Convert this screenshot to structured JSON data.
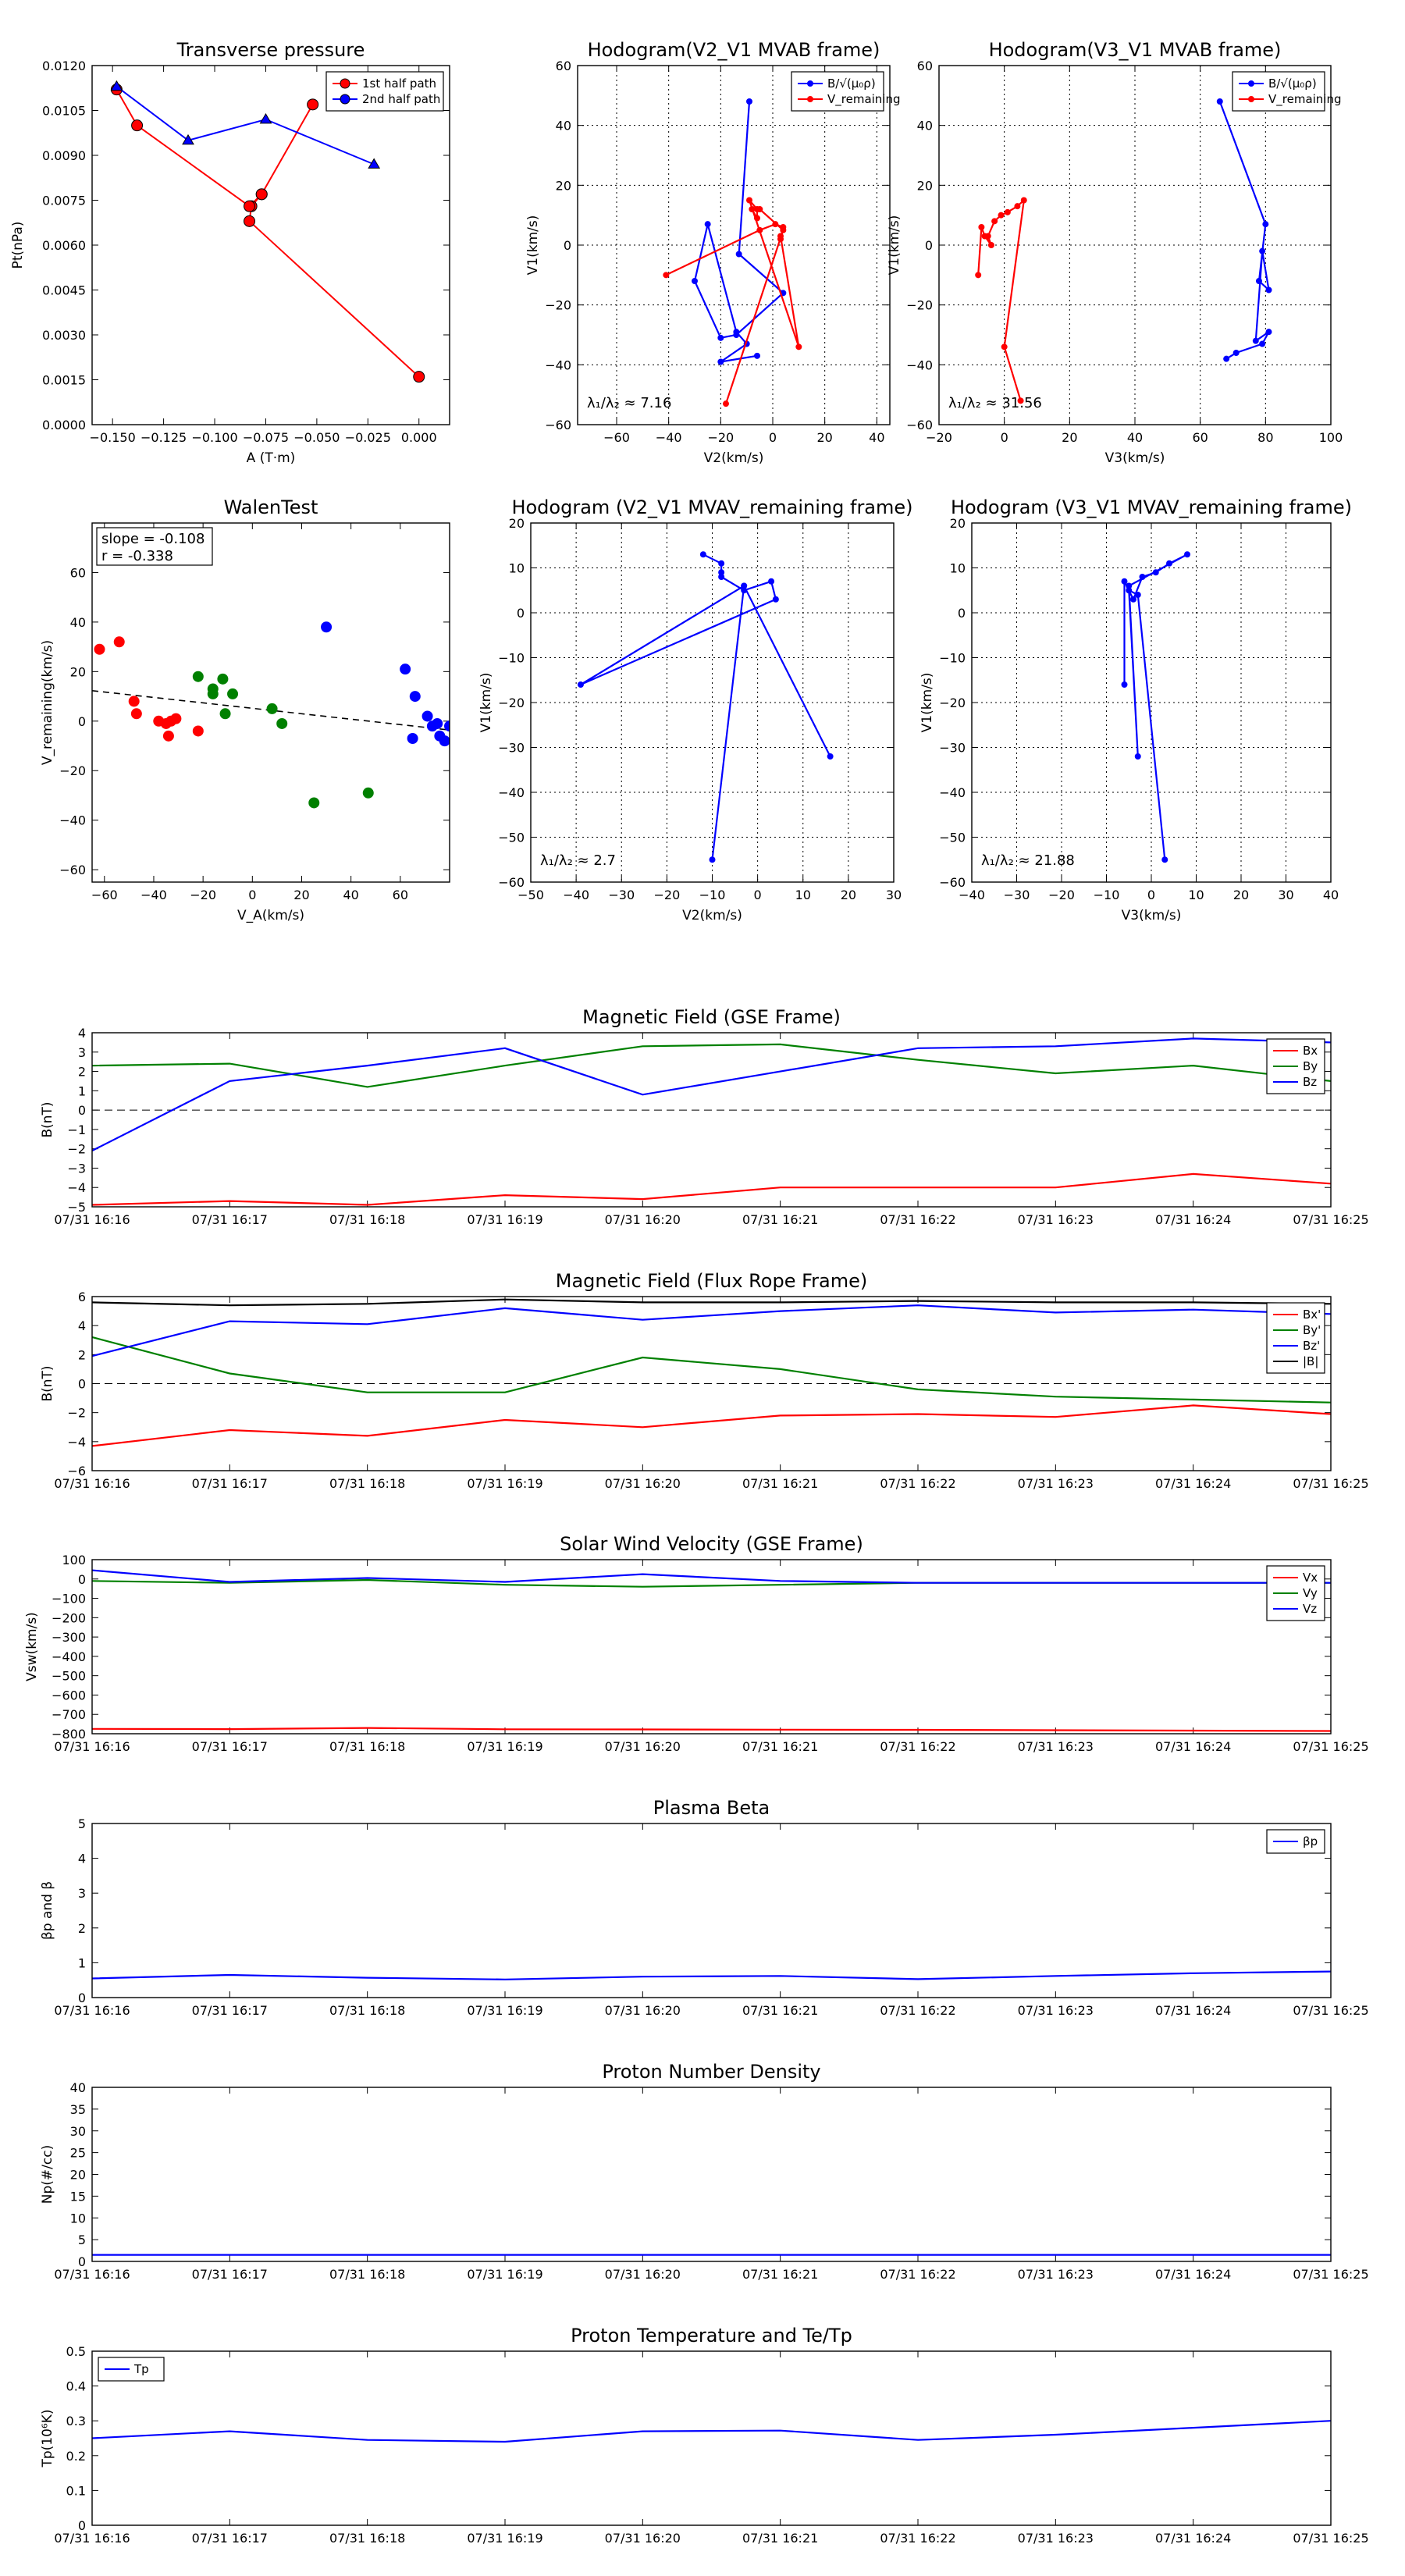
{
  "figure": {
    "background": "#ffffff",
    "colors": {
      "red": "#ff0000",
      "blue": "#0000ff",
      "green": "#008000",
      "black": "#000000",
      "sub_red": "#d62020",
      "sub_blue": "#1a1ad0"
    }
  },
  "chart_data": [
    {
      "id": "transverse-pressure",
      "type": "line",
      "title": "Transverse pressure",
      "xlabel": "A (T·m)",
      "ylabel": "Pt(nPa)",
      "xlim": [
        -0.16,
        0.015
      ],
      "ylim": [
        0,
        0.012
      ],
      "xticks": [
        -0.15,
        -0.125,
        -0.1,
        -0.075,
        -0.05,
        -0.025,
        0.0
      ],
      "xtick_labels": [
        "−0.150",
        "−0.125",
        "−0.100",
        "−0.075",
        "−0.050",
        "−0.025",
        "0.000"
      ],
      "yticks": [
        0,
        0.0015,
        0.003,
        0.0045,
        0.006,
        0.0075,
        0.009,
        0.0105,
        0.012
      ],
      "ytick_labels": [
        "0.0000",
        "0.0015",
        "0.0030",
        "0.0045",
        "0.0060",
        "0.0075",
        "0.0090",
        "0.0105",
        "0.0120"
      ],
      "grid": false,
      "legend": "top-right",
      "series": [
        {
          "name": "1st half path",
          "color": "#ff0000",
          "marker": "circle",
          "x": [
            0.0,
            -0.083,
            -0.082,
            -0.077,
            -0.052,
            -0.077,
            -0.083,
            -0.138,
            -0.148
          ],
          "y": [
            0.0016,
            0.0068,
            0.0073,
            0.0077,
            0.0107,
            0.0077,
            0.0073,
            0.01,
            0.0112
          ]
        },
        {
          "name": "2nd half path",
          "color": "#0000ff",
          "marker": "triangle",
          "x": [
            -0.148,
            -0.113,
            -0.075,
            -0.022
          ],
          "y": [
            0.0113,
            0.0095,
            0.0102,
            0.0087
          ]
        }
      ]
    },
    {
      "id": "hodogram-v2v1-mvab",
      "type": "line",
      "title": "Hodogram(V2_V1 MVAB frame)",
      "xlabel": "V2(km/s)",
      "ylabel": "V1(km/s)",
      "xlim": [
        -75,
        45
      ],
      "ylim": [
        -60,
        60
      ],
      "xticks": [
        -60,
        -40,
        -20,
        0,
        20,
        40
      ],
      "yticks": [
        -60,
        -40,
        -20,
        0,
        20,
        40,
        60
      ],
      "grid": true,
      "legend": "top-right",
      "annotation": "λ₁/λ₂ ≈ 7.16",
      "series": [
        {
          "name": "B/√(μ₀ρ)",
          "color": "#0000ff",
          "x": [
            -9,
            -13,
            4,
            -14,
            -20,
            -30,
            -25,
            -14,
            -10,
            -20,
            -6
          ],
          "y": [
            48,
            -3,
            -16,
            -30,
            -31,
            -12,
            7,
            -29,
            -33,
            -39,
            -37
          ]
        },
        {
          "name": "V_remaining",
          "color": "#ff0000",
          "x": [
            -41,
            -5,
            1,
            4,
            3,
            3,
            10,
            -9,
            -6,
            -6,
            -8,
            -5,
            4,
            -18
          ],
          "y": [
            -10,
            5,
            7,
            6,
            2,
            3,
            -34,
            15,
            12,
            9,
            12,
            12,
            5,
            -53
          ]
        }
      ]
    },
    {
      "id": "hodogram-v3v1-mvab",
      "type": "line",
      "title": "Hodogram(V3_V1 MVAB frame)",
      "xlabel": "V3(km/s)",
      "ylabel": "V1(km/s)",
      "xlim": [
        -20,
        100
      ],
      "ylim": [
        -60,
        60
      ],
      "xticks": [
        -20,
        0,
        20,
        40,
        60,
        80,
        100
      ],
      "yticks": [
        -60,
        -40,
        -20,
        0,
        20,
        40,
        60
      ],
      "grid": true,
      "legend": "top-right",
      "annotation": "λ₁/λ₂ ≈ 31.56",
      "series": [
        {
          "name": "B/√(μ₀ρ)",
          "color": "#0000ff",
          "x": [
            66,
            80,
            78,
            81,
            79,
            77,
            81,
            79,
            71,
            68
          ],
          "y": [
            48,
            7,
            -12,
            -15,
            -2,
            -32,
            -29,
            -33,
            -36,
            -38
          ]
        },
        {
          "name": "V_remaining",
          "color": "#ff0000",
          "x": [
            -8,
            -7,
            -6,
            -4,
            -5,
            -3,
            -1,
            1,
            4,
            6,
            0,
            5
          ],
          "y": [
            -10,
            6,
            3,
            0,
            3,
            8,
            10,
            11,
            13,
            15,
            -34,
            -52
          ]
        }
      ]
    },
    {
      "id": "walen-test",
      "type": "scatter",
      "title": "WalenTest",
      "xlabel": "V_A(km/s)",
      "ylabel": "V_remaining(km/s)",
      "xlim": [
        -65,
        80
      ],
      "ylim": [
        -65,
        80
      ],
      "xticks": [
        -60,
        -40,
        -20,
        0,
        20,
        40,
        60
      ],
      "yticks": [
        -60,
        -40,
        -20,
        0,
        20,
        40,
        60
      ],
      "grid": false,
      "annotation_lines": [
        "slope = -0.108",
        "r = -0.338"
      ],
      "fit_line": {
        "x": [
          -65,
          80
        ],
        "y": [
          12.3,
          -3.6
        ]
      },
      "series": [
        {
          "color": "#ff0000",
          "x": [
            -62,
            -54,
            -48,
            -47,
            -38,
            -35,
            -33,
            -31,
            -22,
            -34
          ],
          "y": [
            29,
            32,
            8,
            3,
            0,
            -1,
            0,
            1,
            -4,
            -6
          ]
        },
        {
          "color": "#008000",
          "x": [
            -22,
            -16,
            -16,
            -12,
            -11,
            -8,
            8,
            12,
            25,
            47
          ],
          "y": [
            18,
            13,
            11,
            17,
            3,
            11,
            5,
            -1,
            -33,
            -29
          ]
        },
        {
          "color": "#0000ff",
          "x": [
            30,
            62,
            65,
            66,
            71,
            73,
            75,
            76,
            78,
            80
          ],
          "y": [
            38,
            21,
            -7,
            10,
            2,
            -2,
            -1,
            -6,
            -8,
            -2
          ]
        }
      ]
    },
    {
      "id": "hodogram-v2v1-mvav",
      "type": "line",
      "title": "Hodogram (V2_V1 MVAV_remaining frame)",
      "xlabel": "V2(km/s)",
      "ylabel": "V1(km/s)",
      "xlim": [
        -50,
        30
      ],
      "ylim": [
        -60,
        20
      ],
      "xticks": [
        -50,
        -40,
        -30,
        -20,
        -10,
        0,
        10,
        20,
        30
      ],
      "yticks": [
        -60,
        -50,
        -40,
        -30,
        -20,
        -10,
        0,
        10,
        20
      ],
      "grid": true,
      "annotation": "λ₁/λ₂ ≈ 2.7",
      "series": [
        {
          "color": "#0000ff",
          "x": [
            -12,
            -8,
            -8,
            -8,
            -3,
            3,
            4,
            -39,
            -3,
            16,
            -3,
            -10
          ],
          "y": [
            13,
            11,
            9,
            8,
            5,
            7,
            3,
            -16,
            6,
            -32,
            6,
            -55
          ]
        }
      ]
    },
    {
      "id": "hodogram-v3v1-mvav",
      "type": "line",
      "title": "Hodogram (V3_V1 MVAV_remaining frame)",
      "xlabel": "V3(km/s)",
      "ylabel": "V1(km/s)",
      "xlim": [
        -40,
        40
      ],
      "ylim": [
        -60,
        20
      ],
      "xticks": [
        -40,
        -30,
        -20,
        -10,
        0,
        10,
        20,
        30,
        40
      ],
      "yticks": [
        -60,
        -50,
        -40,
        -30,
        -20,
        -10,
        0,
        10,
        20
      ],
      "grid": true,
      "annotation": "λ₁/λ₂ ≈ 21.88",
      "series": [
        {
          "color": "#0000ff",
          "x": [
            -6,
            -6,
            -4,
            -2,
            1,
            4,
            8,
            -5,
            -3,
            -5,
            -3,
            3
          ],
          "y": [
            -16,
            7,
            3,
            8,
            9,
            11,
            13,
            6,
            -32,
            5,
            4,
            -55
          ]
        }
      ]
    },
    {
      "id": "magnetic-field-gse",
      "type": "line",
      "title": "Magnetic Field (GSE Frame)",
      "xlabel": "",
      "ylabel": "B(nT)",
      "x": [
        "07/31 16:16",
        "07/31 16:17",
        "07/31 16:18",
        "07/31 16:19",
        "07/31 16:20",
        "07/31 16:21",
        "07/31 16:22",
        "07/31 16:23",
        "07/31 16:24",
        "07/31 16:25"
      ],
      "ylim": [
        -5,
        4
      ],
      "yticks": [
        -5,
        -4,
        -3,
        -2,
        -1,
        0,
        1,
        2,
        3,
        4
      ],
      "zero_line": true,
      "legend": "top-right",
      "series": [
        {
          "name": "Bx",
          "color": "#ff0000",
          "values": [
            -4.9,
            -4.7,
            -4.9,
            -4.4,
            -4.6,
            -4.0,
            -4.0,
            -4.0,
            -3.3,
            -3.8
          ]
        },
        {
          "name": "By",
          "color": "#008000",
          "values": [
            2.3,
            2.4,
            1.2,
            2.3,
            3.3,
            3.4,
            2.6,
            1.9,
            2.3,
            1.5
          ]
        },
        {
          "name": "Bz",
          "color": "#0000ff",
          "values": [
            -2.1,
            1.5,
            2.3,
            3.2,
            0.8,
            2.0,
            3.2,
            3.3,
            3.7,
            3.5
          ]
        }
      ]
    },
    {
      "id": "magnetic-field-flux-rope",
      "type": "line",
      "title": "Magnetic Field (Flux Rope Frame)",
      "xlabel": "",
      "ylabel": "B(nT)",
      "x": [
        "07/31 16:16",
        "07/31 16:17",
        "07/31 16:18",
        "07/31 16:19",
        "07/31 16:20",
        "07/31 16:21",
        "07/31 16:22",
        "07/31 16:23",
        "07/31 16:24",
        "07/31 16:25"
      ],
      "ylim": [
        -6,
        6
      ],
      "yticks": [
        -6,
        -4,
        -2,
        0,
        2,
        4,
        6
      ],
      "zero_line": true,
      "legend": "top-right",
      "series": [
        {
          "name": "Bx'",
          "color": "#ff0000",
          "values": [
            -4.3,
            -3.2,
            -3.6,
            -2.5,
            -3.0,
            -2.2,
            -2.1,
            -2.3,
            -1.5,
            -2.1
          ]
        },
        {
          "name": "By'",
          "color": "#008000",
          "values": [
            3.2,
            0.7,
            -0.6,
            -0.6,
            1.8,
            1.0,
            -0.4,
            -0.9,
            -1.1,
            -1.3
          ]
        },
        {
          "name": "Bz'",
          "color": "#0000ff",
          "values": [
            1.9,
            4.3,
            4.1,
            5.2,
            4.4,
            5.0,
            5.4,
            4.9,
            5.1,
            4.8
          ]
        },
        {
          "name": "|B|",
          "color": "#000000",
          "values": [
            5.6,
            5.4,
            5.5,
            5.8,
            5.6,
            5.6,
            5.7,
            5.6,
            5.6,
            5.5
          ]
        }
      ]
    },
    {
      "id": "solar-wind-velocity",
      "type": "line",
      "title": "Solar Wind Velocity (GSE Frame)",
      "xlabel": "",
      "ylabel": "Vsw(km/s)",
      "x": [
        "07/31 16:16",
        "07/31 16:17",
        "07/31 16:18",
        "07/31 16:19",
        "07/31 16:20",
        "07/31 16:21",
        "07/31 16:22",
        "07/31 16:23",
        "07/31 16:24",
        "07/31 16:25"
      ],
      "ylim": [
        -800,
        100
      ],
      "yticks": [
        -800,
        -700,
        -600,
        -500,
        -400,
        -300,
        -200,
        -100,
        0,
        100
      ],
      "legend": "top-right",
      "series": [
        {
          "name": "Vx",
          "color": "#ff0000",
          "values": [
            -775,
            -776,
            -770,
            -777,
            -778,
            -779,
            -780,
            -782,
            -784,
            -786
          ]
        },
        {
          "name": "Vy",
          "color": "#008000",
          "values": [
            -10,
            -20,
            -5,
            -30,
            -40,
            -30,
            -20,
            -20,
            -20,
            -20
          ]
        },
        {
          "name": "Vz",
          "color": "#0000ff",
          "values": [
            45,
            -15,
            5,
            -15,
            25,
            -10,
            -20,
            -20,
            -20,
            -20
          ]
        }
      ]
    },
    {
      "id": "plasma-beta",
      "type": "line",
      "title": "Plasma Beta",
      "xlabel": "",
      "ylabel": "βp and β",
      "x": [
        "07/31 16:16",
        "07/31 16:17",
        "07/31 16:18",
        "07/31 16:19",
        "07/31 16:20",
        "07/31 16:21",
        "07/31 16:22",
        "07/31 16:23",
        "07/31 16:24",
        "07/31 16:25"
      ],
      "ylim": [
        0,
        5
      ],
      "yticks": [
        0,
        1,
        2,
        3,
        4,
        5
      ],
      "legend": "top-right",
      "series": [
        {
          "name": "βp",
          "color": "#0000ff",
          "values": [
            0.55,
            0.65,
            0.57,
            0.52,
            0.6,
            0.62,
            0.53,
            0.62,
            0.7,
            0.75
          ]
        }
      ]
    },
    {
      "id": "proton-number-density",
      "type": "line",
      "title": "Proton Number Density",
      "xlabel": "",
      "ylabel": "Np(#/cc)",
      "x": [
        "07/31 16:16",
        "07/31 16:17",
        "07/31 16:18",
        "07/31 16:19",
        "07/31 16:20",
        "07/31 16:21",
        "07/31 16:22",
        "07/31 16:23",
        "07/31 16:24",
        "07/31 16:25"
      ],
      "ylim": [
        0,
        40
      ],
      "yticks": [
        0,
        5,
        10,
        15,
        20,
        25,
        30,
        35,
        40
      ],
      "series": [
        {
          "color": "#0000ff",
          "values": [
            1.5,
            1.5,
            1.5,
            1.5,
            1.5,
            1.5,
            1.5,
            1.5,
            1.5,
            1.5
          ]
        }
      ]
    },
    {
      "id": "proton-temperature",
      "type": "line",
      "title": "Proton Temperature and Te/Tp",
      "xlabel": "",
      "ylabel": "Tp(10⁶K)",
      "x": [
        "07/31 16:16",
        "07/31 16:17",
        "07/31 16:18",
        "07/31 16:19",
        "07/31 16:20",
        "07/31 16:21",
        "07/31 16:22",
        "07/31 16:23",
        "07/31 16:24",
        "07/31 16:25"
      ],
      "ylim": [
        0,
        0.5
      ],
      "yticks": [
        0,
        0.1,
        0.2,
        0.3,
        0.4,
        0.5
      ],
      "legend": "top-left",
      "series": [
        {
          "name": "Tp",
          "color": "#0000ff",
          "values": [
            0.25,
            0.27,
            0.245,
            0.24,
            0.27,
            0.272,
            0.245,
            0.26,
            0.28,
            0.3
          ]
        }
      ]
    }
  ]
}
